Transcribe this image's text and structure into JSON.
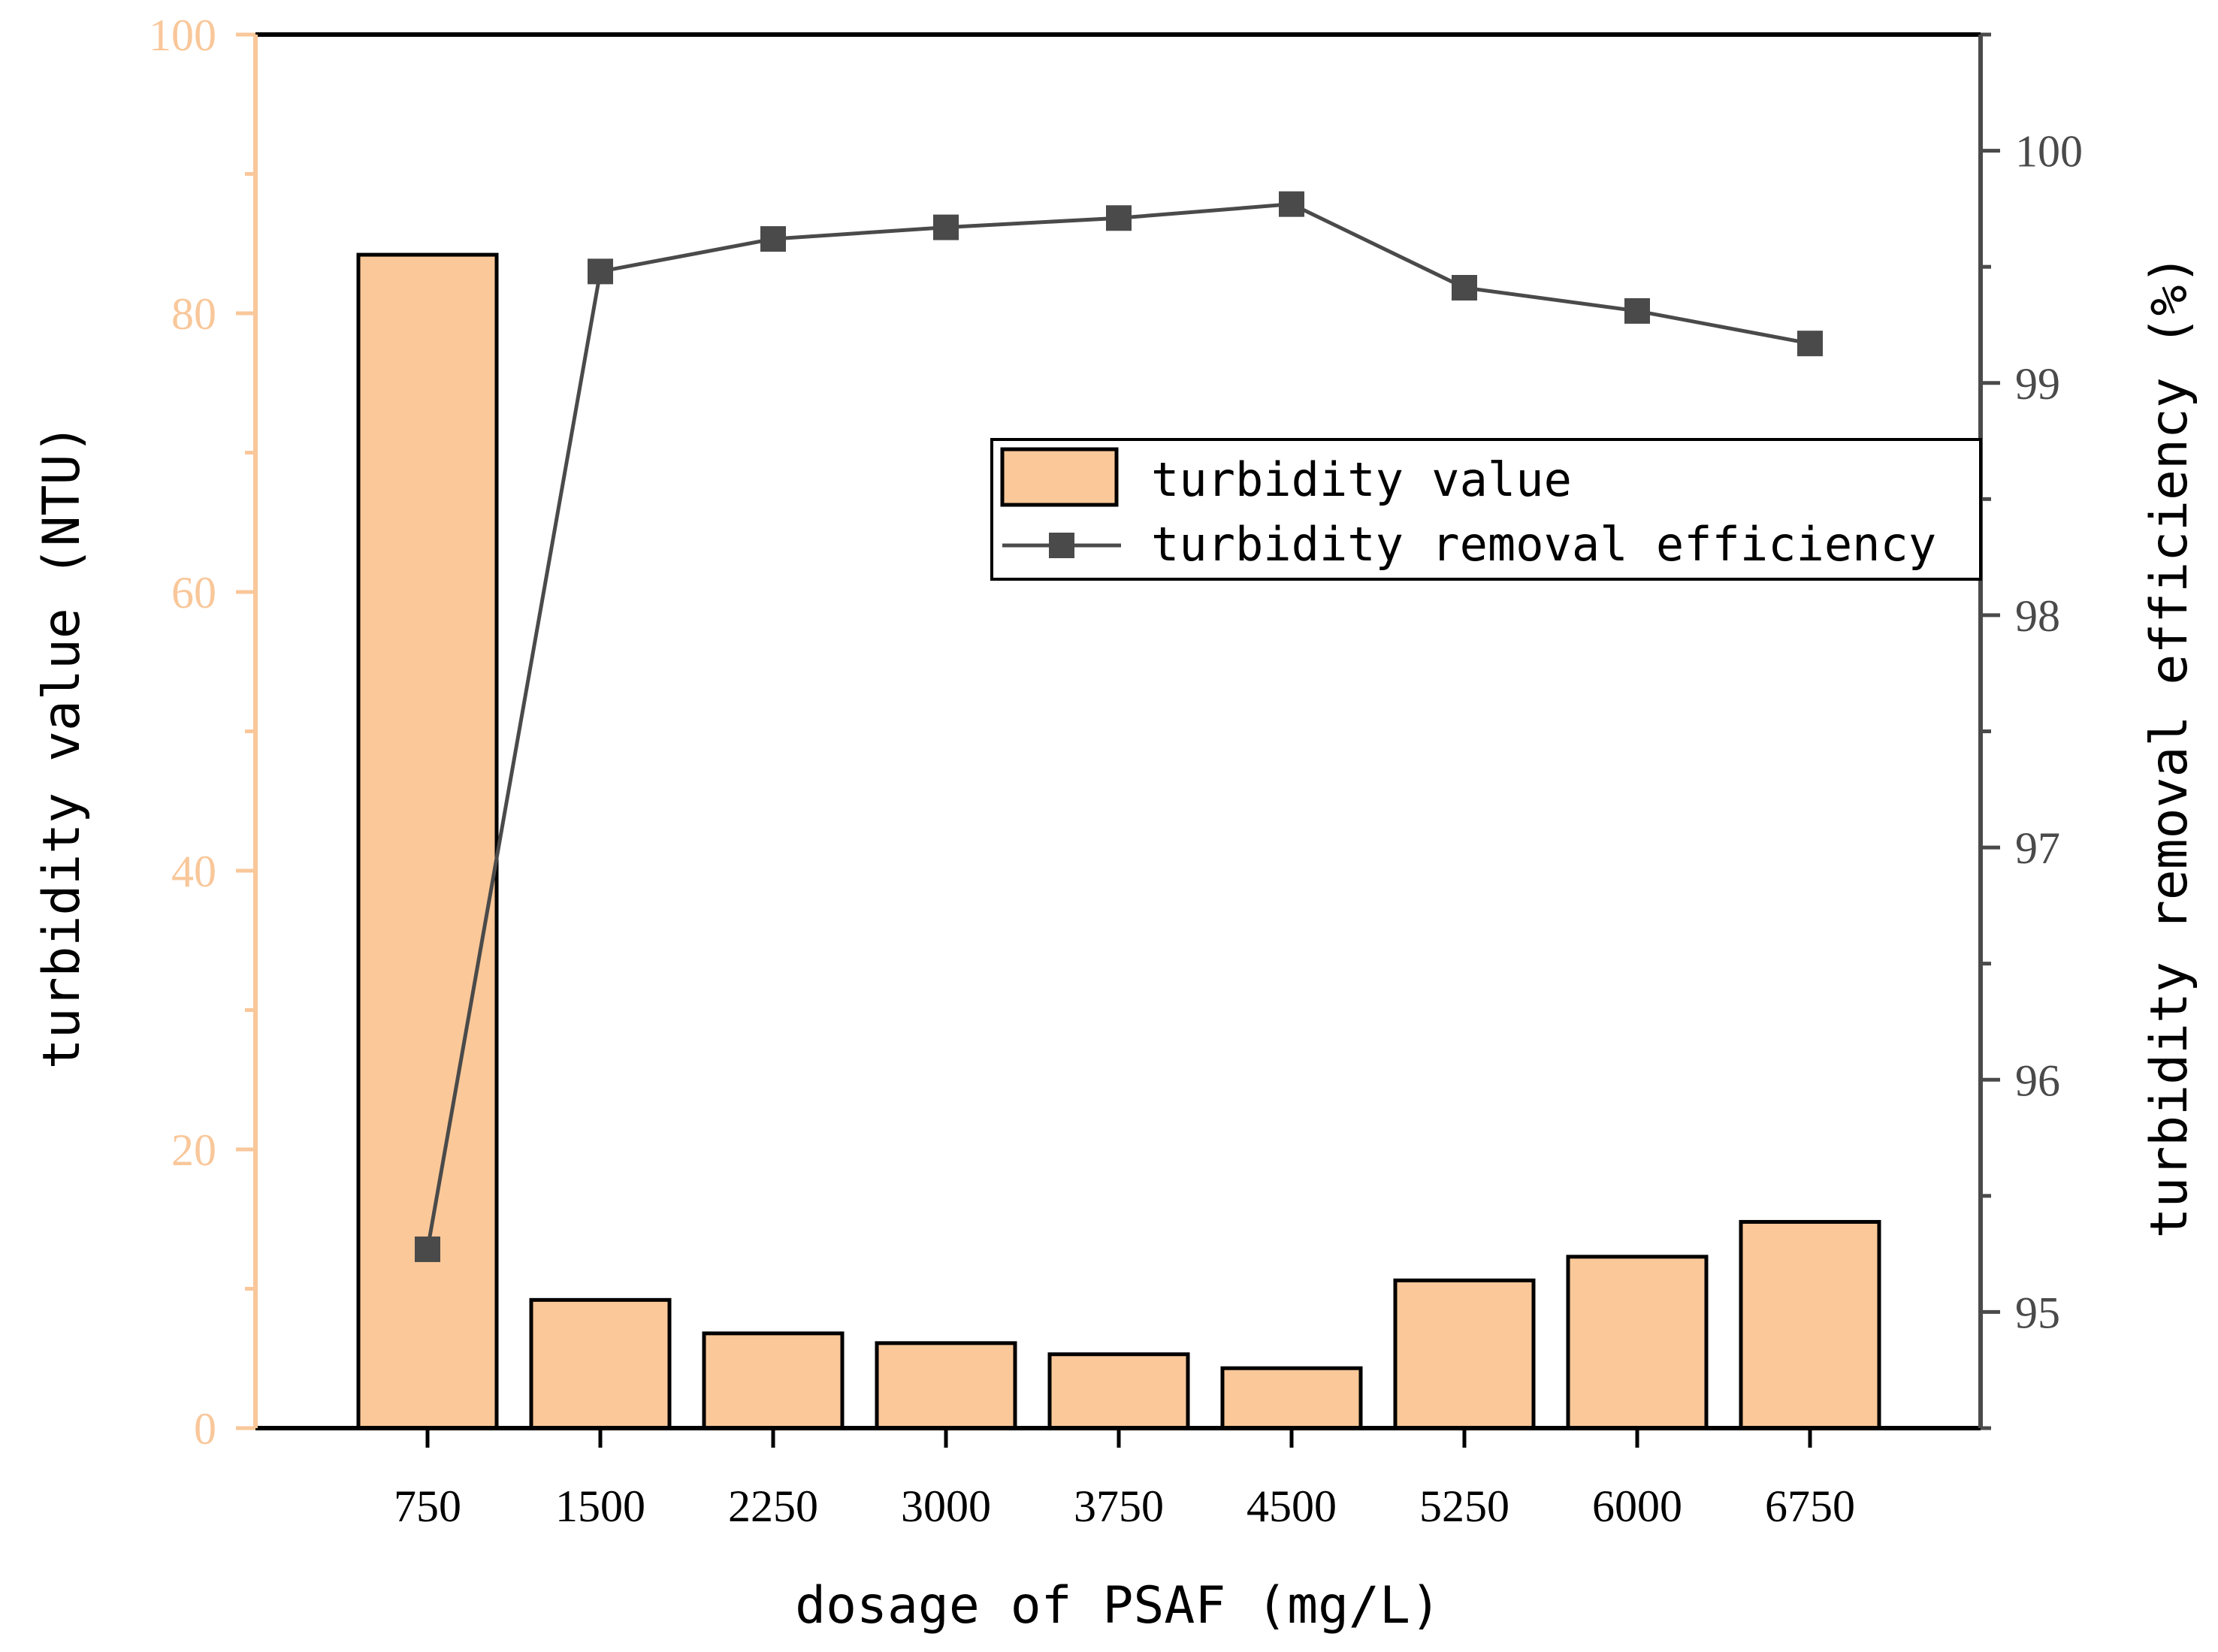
{
  "chart_data": {
    "type": "bar+line",
    "categories": [
      "750",
      "1500",
      "2250",
      "3000",
      "3750",
      "4500",
      "5250",
      "6000",
      "6750"
    ],
    "x": [
      750,
      1500,
      2250,
      3000,
      3750,
      4500,
      5250,
      6000,
      6750
    ],
    "series": [
      {
        "name": "turbidity value",
        "type": "bar",
        "axis": "left",
        "values": [
          84.2,
          9.2,
          6.8,
          6.1,
          5.3,
          4.3,
          10.6,
          12.3,
          14.8
        ]
      },
      {
        "name": "turbidity removal efficiency",
        "type": "line",
        "axis": "right",
        "values": [
          95.27,
          99.48,
          99.62,
          99.67,
          99.71,
          99.77,
          99.41,
          99.31,
          99.17
        ]
      }
    ],
    "xlabel": "dosage of PSAF (mg/L)",
    "ylabel": "turbidity value (NTU)",
    "ylabel_right": "turbidity removal efficiency (%)",
    "ylim": [
      0,
      100
    ],
    "ylim_right": [
      94.5,
      100.5
    ],
    "yticks": [
      "0",
      "20",
      "40",
      "60",
      "80",
      "100"
    ],
    "yticks_right": [
      "95",
      "96",
      "97",
      "98",
      "99",
      "100"
    ],
    "legend_position": "upper-right-center",
    "colors": {
      "bar_fill": "#fbc899",
      "bar_stroke": "#000000",
      "line": "#4a4a4a",
      "marker": "#4a4a4a",
      "left_axis": "#f9c79a",
      "right_axis": "#4a4a4a"
    }
  }
}
